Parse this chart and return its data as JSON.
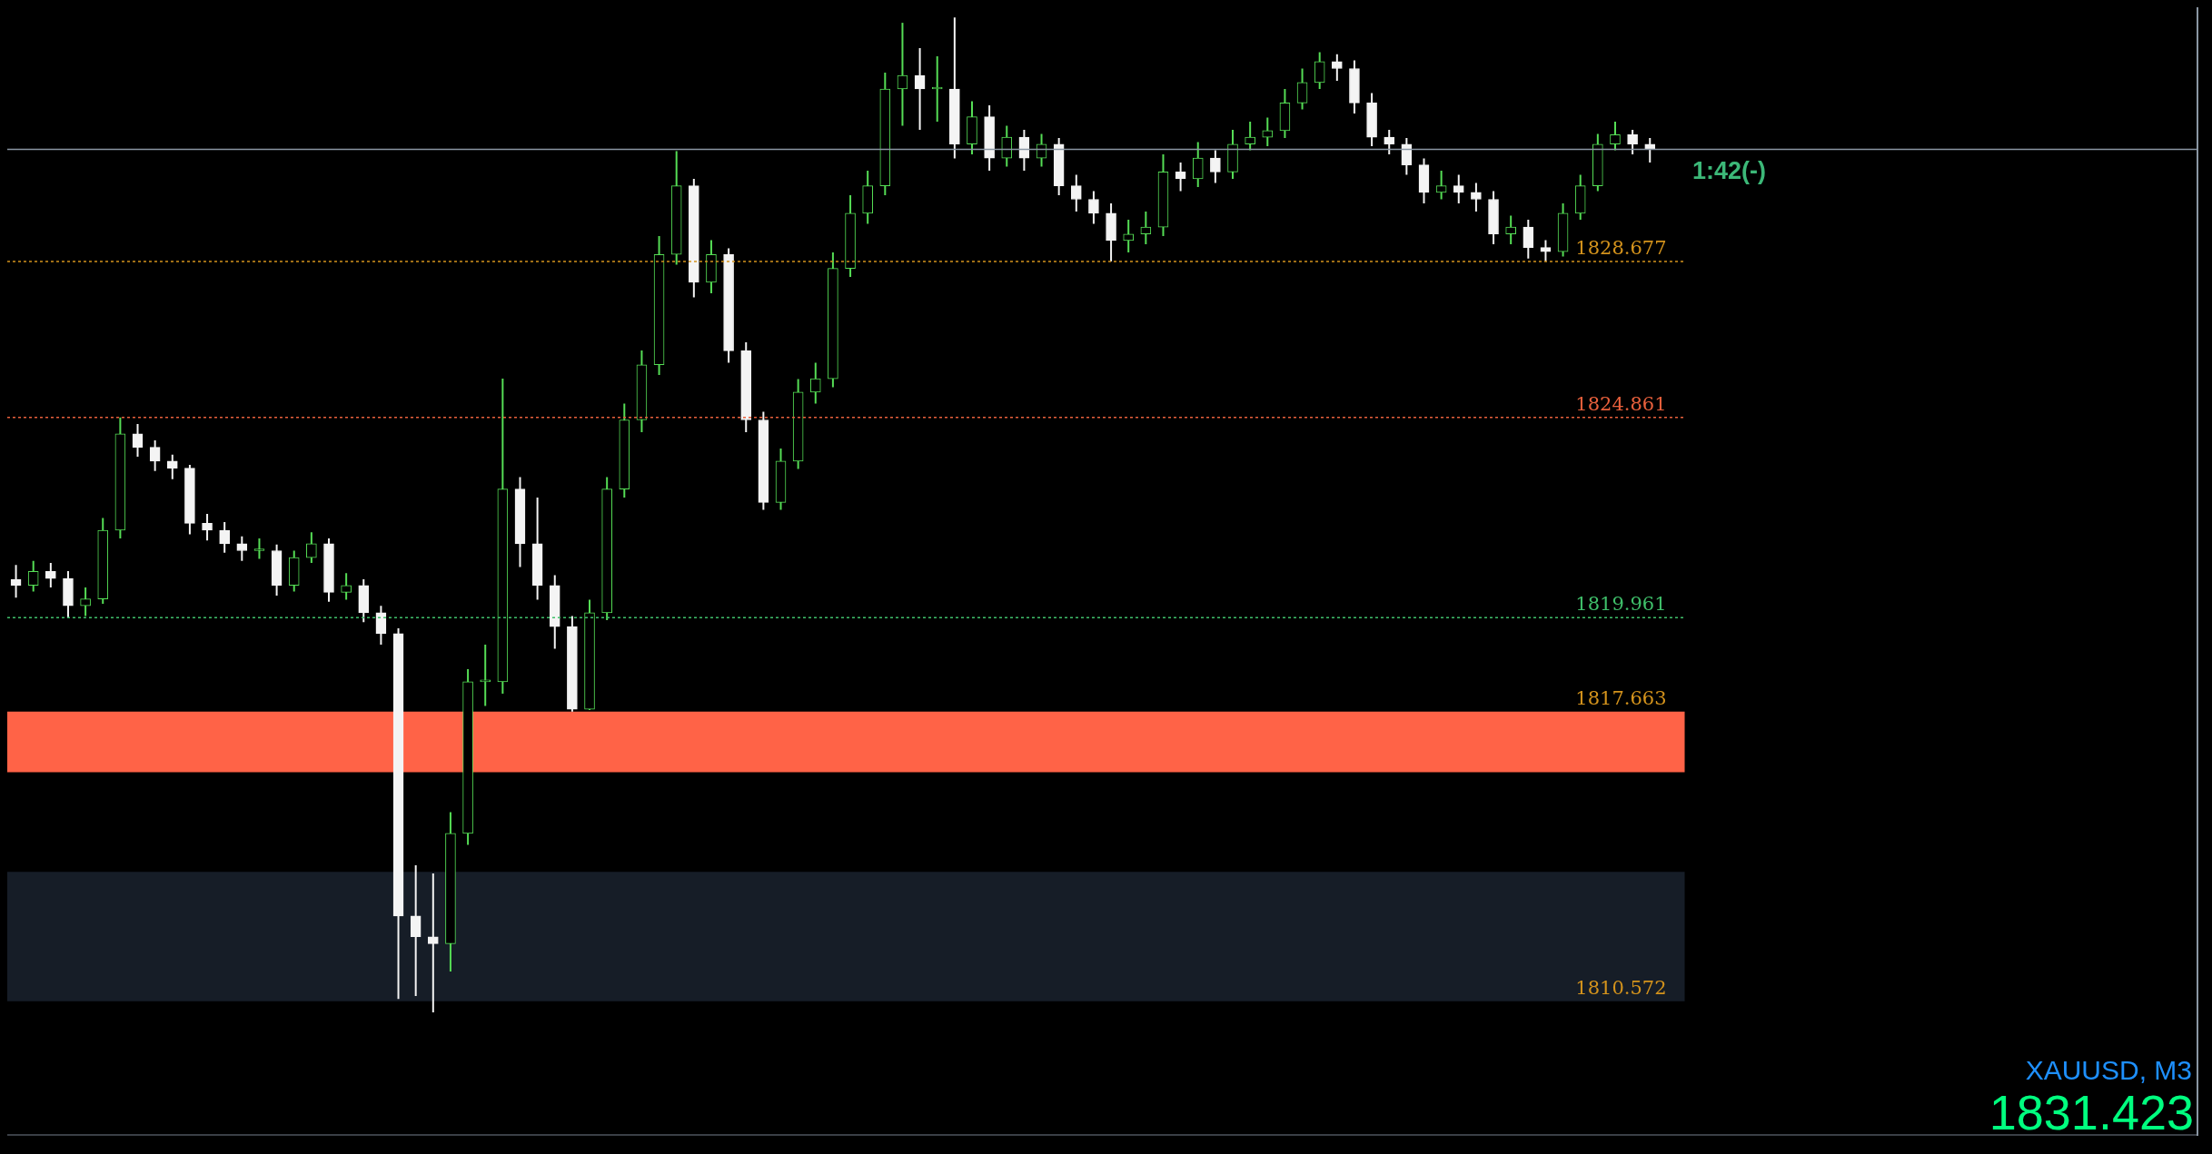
{
  "chart_data": {
    "type": "candlestick",
    "colors": [
      "#f4f4f4",
      "#55dd55",
      "#f4f4f4",
      "#f4f4f4",
      "#55dd55",
      "#55dd55",
      "#55dd55",
      "#f4f4f4",
      "#f4f4f4",
      "#f4f4f4",
      "#f4f4f4",
      "#f4f4f4",
      "#f4f4f4",
      "#f4f4f4",
      "#55dd55",
      "#f4f4f4",
      "#55dd55",
      "#55dd55",
      "#f4f4f4",
      "#55dd55",
      "#f4f4f4",
      "#f4f4f4",
      "#f4f4f4",
      "#f4f4f4",
      "#f4f4f4",
      "#55dd55",
      "#55dd55",
      "#55dd55",
      "#55dd55",
      "#f4f4f4",
      "#f4f4f4",
      "#f4f4f4",
      "#f4f4f4",
      "#55dd55",
      "#55dd55",
      "#55dd55",
      "#55dd55",
      "#55dd55",
      "#55dd55",
      "#f4f4f4",
      "#55dd55",
      "#f4f4f4",
      "#f4f4f4",
      "#f4f4f4",
      "#55dd55",
      "#55dd55",
      "#55dd55",
      "#55dd55",
      "#55dd55",
      "#55dd55",
      "#55dd55",
      "#55dd55",
      "#f4f4f4",
      "#55dd55",
      "#f4f4f4",
      "#55dd55",
      "#f4f4f4",
      "#55dd55",
      "#f4f4f4",
      "#55dd55",
      "#f4f4f4",
      "#f4f4f4",
      "#f4f4f4",
      "#f4f4f4",
      "#55dd55",
      "#55dd55",
      "#55dd55",
      "#f4f4f4",
      "#55dd55",
      "#f4f4f4",
      "#55dd55",
      "#55dd55",
      "#55dd55",
      "#55dd55",
      "#55dd55",
      "#55dd55",
      "#f4f4f4",
      "#f4f4f4",
      "#f4f4f4",
      "#f4f4f4",
      "#f4f4f4",
      "#f4f4f4",
      "#55dd55",
      "#f4f4f4",
      "#f4f4f4",
      "#f4f4f4",
      "#55dd55",
      "#f4f4f4",
      "#f4f4f4",
      "#55dd55",
      "#55dd55",
      "#55dd55",
      "#55dd55",
      "#f4f4f4",
      "#f4f4f4"
    ],
    "categories": [
      null,
      null,
      null,
      null,
      null,
      null,
      null,
      null,
      null,
      null,
      null,
      null,
      null,
      null,
      null,
      null,
      null,
      null,
      null,
      null,
      null,
      null,
      null,
      null,
      null,
      null,
      null,
      null,
      null,
      null,
      null,
      null,
      null,
      null,
      null,
      null,
      null,
      null,
      null,
      null,
      null,
      null,
      null,
      null,
      null,
      null,
      null,
      null,
      null,
      null,
      null,
      null,
      null,
      null,
      null,
      null,
      null,
      null,
      null,
      null,
      null,
      null,
      null,
      null,
      null,
      null,
      null,
      null,
      null,
      null,
      null,
      null,
      null,
      null,
      null,
      null,
      null,
      null,
      null,
      null,
      null,
      null,
      null,
      null,
      null,
      null,
      null,
      null,
      null,
      null,
      null,
      null,
      null,
      null,
      null
    ],
    "ohlc": [
      [
        1820.9,
        1821.25,
        1820.45,
        1820.75
      ],
      [
        1820.75,
        1821.35,
        1820.6,
        1821.09
      ],
      [
        1821.09,
        1821.3,
        1820.7,
        1820.92
      ],
      [
        1820.92,
        1821.1,
        1819.95,
        1820.25
      ],
      [
        1820.25,
        1820.7,
        1820.0,
        1820.42
      ],
      [
        1820.42,
        1822.4,
        1820.3,
        1822.1
      ],
      [
        1822.1,
        1824.86,
        1821.9,
        1824.46
      ],
      [
        1824.46,
        1824.7,
        1823.9,
        1824.13
      ],
      [
        1824.13,
        1824.3,
        1823.55,
        1823.79
      ],
      [
        1823.79,
        1823.95,
        1823.35,
        1823.62
      ],
      [
        1823.62,
        1823.7,
        1822.0,
        1822.27
      ],
      [
        1822.27,
        1822.5,
        1821.85,
        1822.1
      ],
      [
        1822.1,
        1822.3,
        1821.55,
        1821.77
      ],
      [
        1821.77,
        1821.95,
        1821.35,
        1821.6
      ],
      [
        1821.6,
        1821.9,
        1821.4,
        1821.6
      ],
      [
        1821.6,
        1821.75,
        1820.5,
        1820.75
      ],
      [
        1820.75,
        1821.6,
        1820.6,
        1821.43
      ],
      [
        1821.43,
        1822.05,
        1821.3,
        1821.77
      ],
      [
        1821.77,
        1821.9,
        1820.35,
        1820.58
      ],
      [
        1820.58,
        1821.05,
        1820.4,
        1820.75
      ],
      [
        1820.75,
        1820.9,
        1819.85,
        1820.08
      ],
      [
        1820.08,
        1820.25,
        1819.3,
        1819.57
      ],
      [
        1819.57,
        1819.7,
        1810.63,
        1812.66
      ],
      [
        1812.66,
        1813.9,
        1810.7,
        1812.15
      ],
      [
        1812.15,
        1813.7,
        1810.3,
        1811.98
      ],
      [
        1811.98,
        1815.2,
        1811.3,
        1814.68
      ],
      [
        1814.68,
        1818.7,
        1814.4,
        1818.39
      ],
      [
        1818.39,
        1819.3,
        1817.8,
        1818.39
      ],
      [
        1818.39,
        1825.81,
        1818.1,
        1823.11
      ],
      [
        1823.11,
        1823.4,
        1821.2,
        1821.77
      ],
      [
        1821.77,
        1822.9,
        1820.4,
        1820.75
      ],
      [
        1820.75,
        1821.0,
        1819.2,
        1819.74
      ],
      [
        1819.74,
        1820.0,
        1817.66,
        1817.72
      ],
      [
        1817.72,
        1820.4,
        1817.7,
        1820.08
      ],
      [
        1820.08,
        1823.4,
        1819.9,
        1823.11
      ],
      [
        1823.11,
        1825.2,
        1822.9,
        1824.8
      ],
      [
        1824.8,
        1826.5,
        1824.5,
        1826.15
      ],
      [
        1826.15,
        1829.3,
        1825.9,
        1828.85
      ],
      [
        1828.85,
        1831.38,
        1828.6,
        1830.53
      ],
      [
        1830.53,
        1830.7,
        1827.8,
        1828.17
      ],
      [
        1828.17,
        1829.2,
        1827.9,
        1828.85
      ],
      [
        1828.85,
        1829.0,
        1826.2,
        1826.49
      ],
      [
        1826.49,
        1826.7,
        1824.5,
        1824.8
      ],
      [
        1824.8,
        1825.0,
        1822.6,
        1822.78
      ],
      [
        1822.78,
        1824.1,
        1822.6,
        1823.79
      ],
      [
        1823.79,
        1825.8,
        1823.6,
        1825.48
      ],
      [
        1825.48,
        1826.2,
        1825.2,
        1825.81
      ],
      [
        1825.81,
        1828.9,
        1825.6,
        1828.51
      ],
      [
        1828.51,
        1830.3,
        1828.3,
        1829.86
      ],
      [
        1829.86,
        1830.9,
        1829.6,
        1830.53
      ],
      [
        1830.53,
        1833.3,
        1830.3,
        1832.9
      ],
      [
        1832.9,
        1834.52,
        1832.0,
        1833.23
      ],
      [
        1833.23,
        1833.9,
        1831.9,
        1832.9
      ],
      [
        1832.9,
        1833.7,
        1832.1,
        1832.9
      ],
      [
        1832.9,
        1834.65,
        1831.2,
        1831.55
      ],
      [
        1831.55,
        1832.6,
        1831.3,
        1832.22
      ],
      [
        1832.22,
        1832.5,
        1830.9,
        1831.21
      ],
      [
        1831.21,
        1832.0,
        1831.0,
        1831.72
      ],
      [
        1831.72,
        1831.9,
        1830.9,
        1831.21
      ],
      [
        1831.21,
        1831.8,
        1831.0,
        1831.55
      ],
      [
        1831.55,
        1831.7,
        1830.3,
        1830.53
      ],
      [
        1830.53,
        1830.8,
        1829.9,
        1830.2
      ],
      [
        1830.2,
        1830.4,
        1829.6,
        1829.86
      ],
      [
        1829.86,
        1830.1,
        1828.68,
        1829.19
      ],
      [
        1829.19,
        1829.7,
        1828.9,
        1829.35
      ],
      [
        1829.35,
        1829.9,
        1829.1,
        1829.52
      ],
      [
        1829.52,
        1831.3,
        1829.3,
        1830.87
      ],
      [
        1830.87,
        1831.1,
        1830.4,
        1830.7
      ],
      [
        1830.7,
        1831.6,
        1830.5,
        1831.21
      ],
      [
        1831.21,
        1831.4,
        1830.6,
        1830.87
      ],
      [
        1830.87,
        1831.9,
        1830.7,
        1831.55
      ],
      [
        1831.55,
        1832.1,
        1831.4,
        1831.72
      ],
      [
        1831.72,
        1832.2,
        1831.5,
        1831.88
      ],
      [
        1831.88,
        1832.9,
        1831.7,
        1832.56
      ],
      [
        1832.56,
        1833.4,
        1832.4,
        1833.06
      ],
      [
        1833.06,
        1833.8,
        1832.9,
        1833.57
      ],
      [
        1833.57,
        1833.75,
        1833.1,
        1833.4
      ],
      [
        1833.4,
        1833.6,
        1832.3,
        1832.56
      ],
      [
        1832.56,
        1832.8,
        1831.5,
        1831.72
      ],
      [
        1831.72,
        1831.9,
        1831.3,
        1831.55
      ],
      [
        1831.55,
        1831.7,
        1830.8,
        1831.04
      ],
      [
        1831.04,
        1831.2,
        1830.1,
        1830.37
      ],
      [
        1830.37,
        1830.9,
        1830.2,
        1830.53
      ],
      [
        1830.53,
        1830.8,
        1830.1,
        1830.37
      ],
      [
        1830.37,
        1830.6,
        1829.9,
        1830.2
      ],
      [
        1830.2,
        1830.4,
        1829.1,
        1829.35
      ],
      [
        1829.35,
        1829.8,
        1829.1,
        1829.52
      ],
      [
        1829.52,
        1829.7,
        1828.75,
        1829.02
      ],
      [
        1829.02,
        1829.2,
        1828.68,
        1828.92
      ],
      [
        1828.92,
        1830.1,
        1828.8,
        1829.86
      ],
      [
        1829.86,
        1830.8,
        1829.7,
        1830.53
      ],
      [
        1830.53,
        1831.8,
        1830.4,
        1831.55
      ],
      [
        1831.55,
        1832.1,
        1831.4,
        1831.78
      ],
      [
        1831.78,
        1831.9,
        1831.3,
        1831.55
      ],
      [
        1831.55,
        1831.7,
        1831.1,
        1831.42
      ]
    ],
    "ylim": [
      1807.3,
      1834.9
    ],
    "tick_labels": false,
    "legend": false,
    "ref_lines": [
      {
        "axis": "y",
        "value": 1831.423,
        "color": "#8a96a3",
        "line_style": "solid"
      },
      {
        "axis": "y",
        "value": 1828.677,
        "label": "1828.677",
        "color": "#d4931c",
        "line_style": "dotted"
      },
      {
        "axis": "y",
        "value": 1824.861,
        "label": "1824.861",
        "color": "#e8603c",
        "line_style": "dotted"
      },
      {
        "axis": "y",
        "value": 1819.961,
        "label": "1819.961",
        "color": "#3fbf6a",
        "line_style": "dotted"
      }
    ],
    "bands": [
      {
        "axis": "y",
        "from": 1816.18,
        "to": 1817.663,
        "label": "1817.663",
        "color": "#ff6347"
      },
      {
        "axis": "y",
        "from": 1810.572,
        "to": 1813.74,
        "label": "1810.572",
        "color": "#161d27"
      }
    ],
    "annotations": [
      "1:42(-)",
      "XAUUSD, M3",
      "1831.423"
    ]
  }
}
